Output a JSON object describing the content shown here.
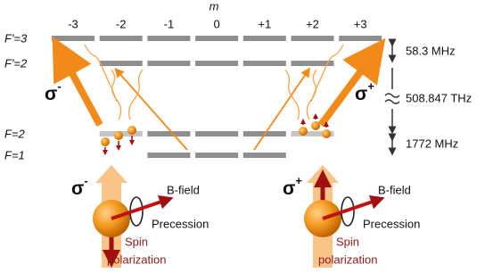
{
  "axis_label": "m",
  "m_values": [
    "-3",
    "-2",
    "-1",
    "0",
    "+1",
    "+2",
    "+3"
  ],
  "levels": [
    "F'=3",
    "F'=2",
    "F=2",
    "F=1"
  ],
  "splittings": [
    "58.3 MHz",
    "508.847 THz",
    "1772 MHz"
  ],
  "transitions": [
    {
      "symbol": "σ",
      "sign": "-"
    },
    {
      "symbol": "σ",
      "sign": "+"
    }
  ],
  "panels": [
    {
      "sigma": {
        "symbol": "σ",
        "sign": "-"
      },
      "field": "B-field",
      "precession": "Precession",
      "polarization": [
        "Spin",
        "polarization"
      ]
    },
    {
      "sigma": {
        "symbol": "σ",
        "sign": "+"
      },
      "field": "B-field",
      "precession": "Precession",
      "polarization": [
        "Spin",
        "polarization"
      ]
    }
  ]
}
